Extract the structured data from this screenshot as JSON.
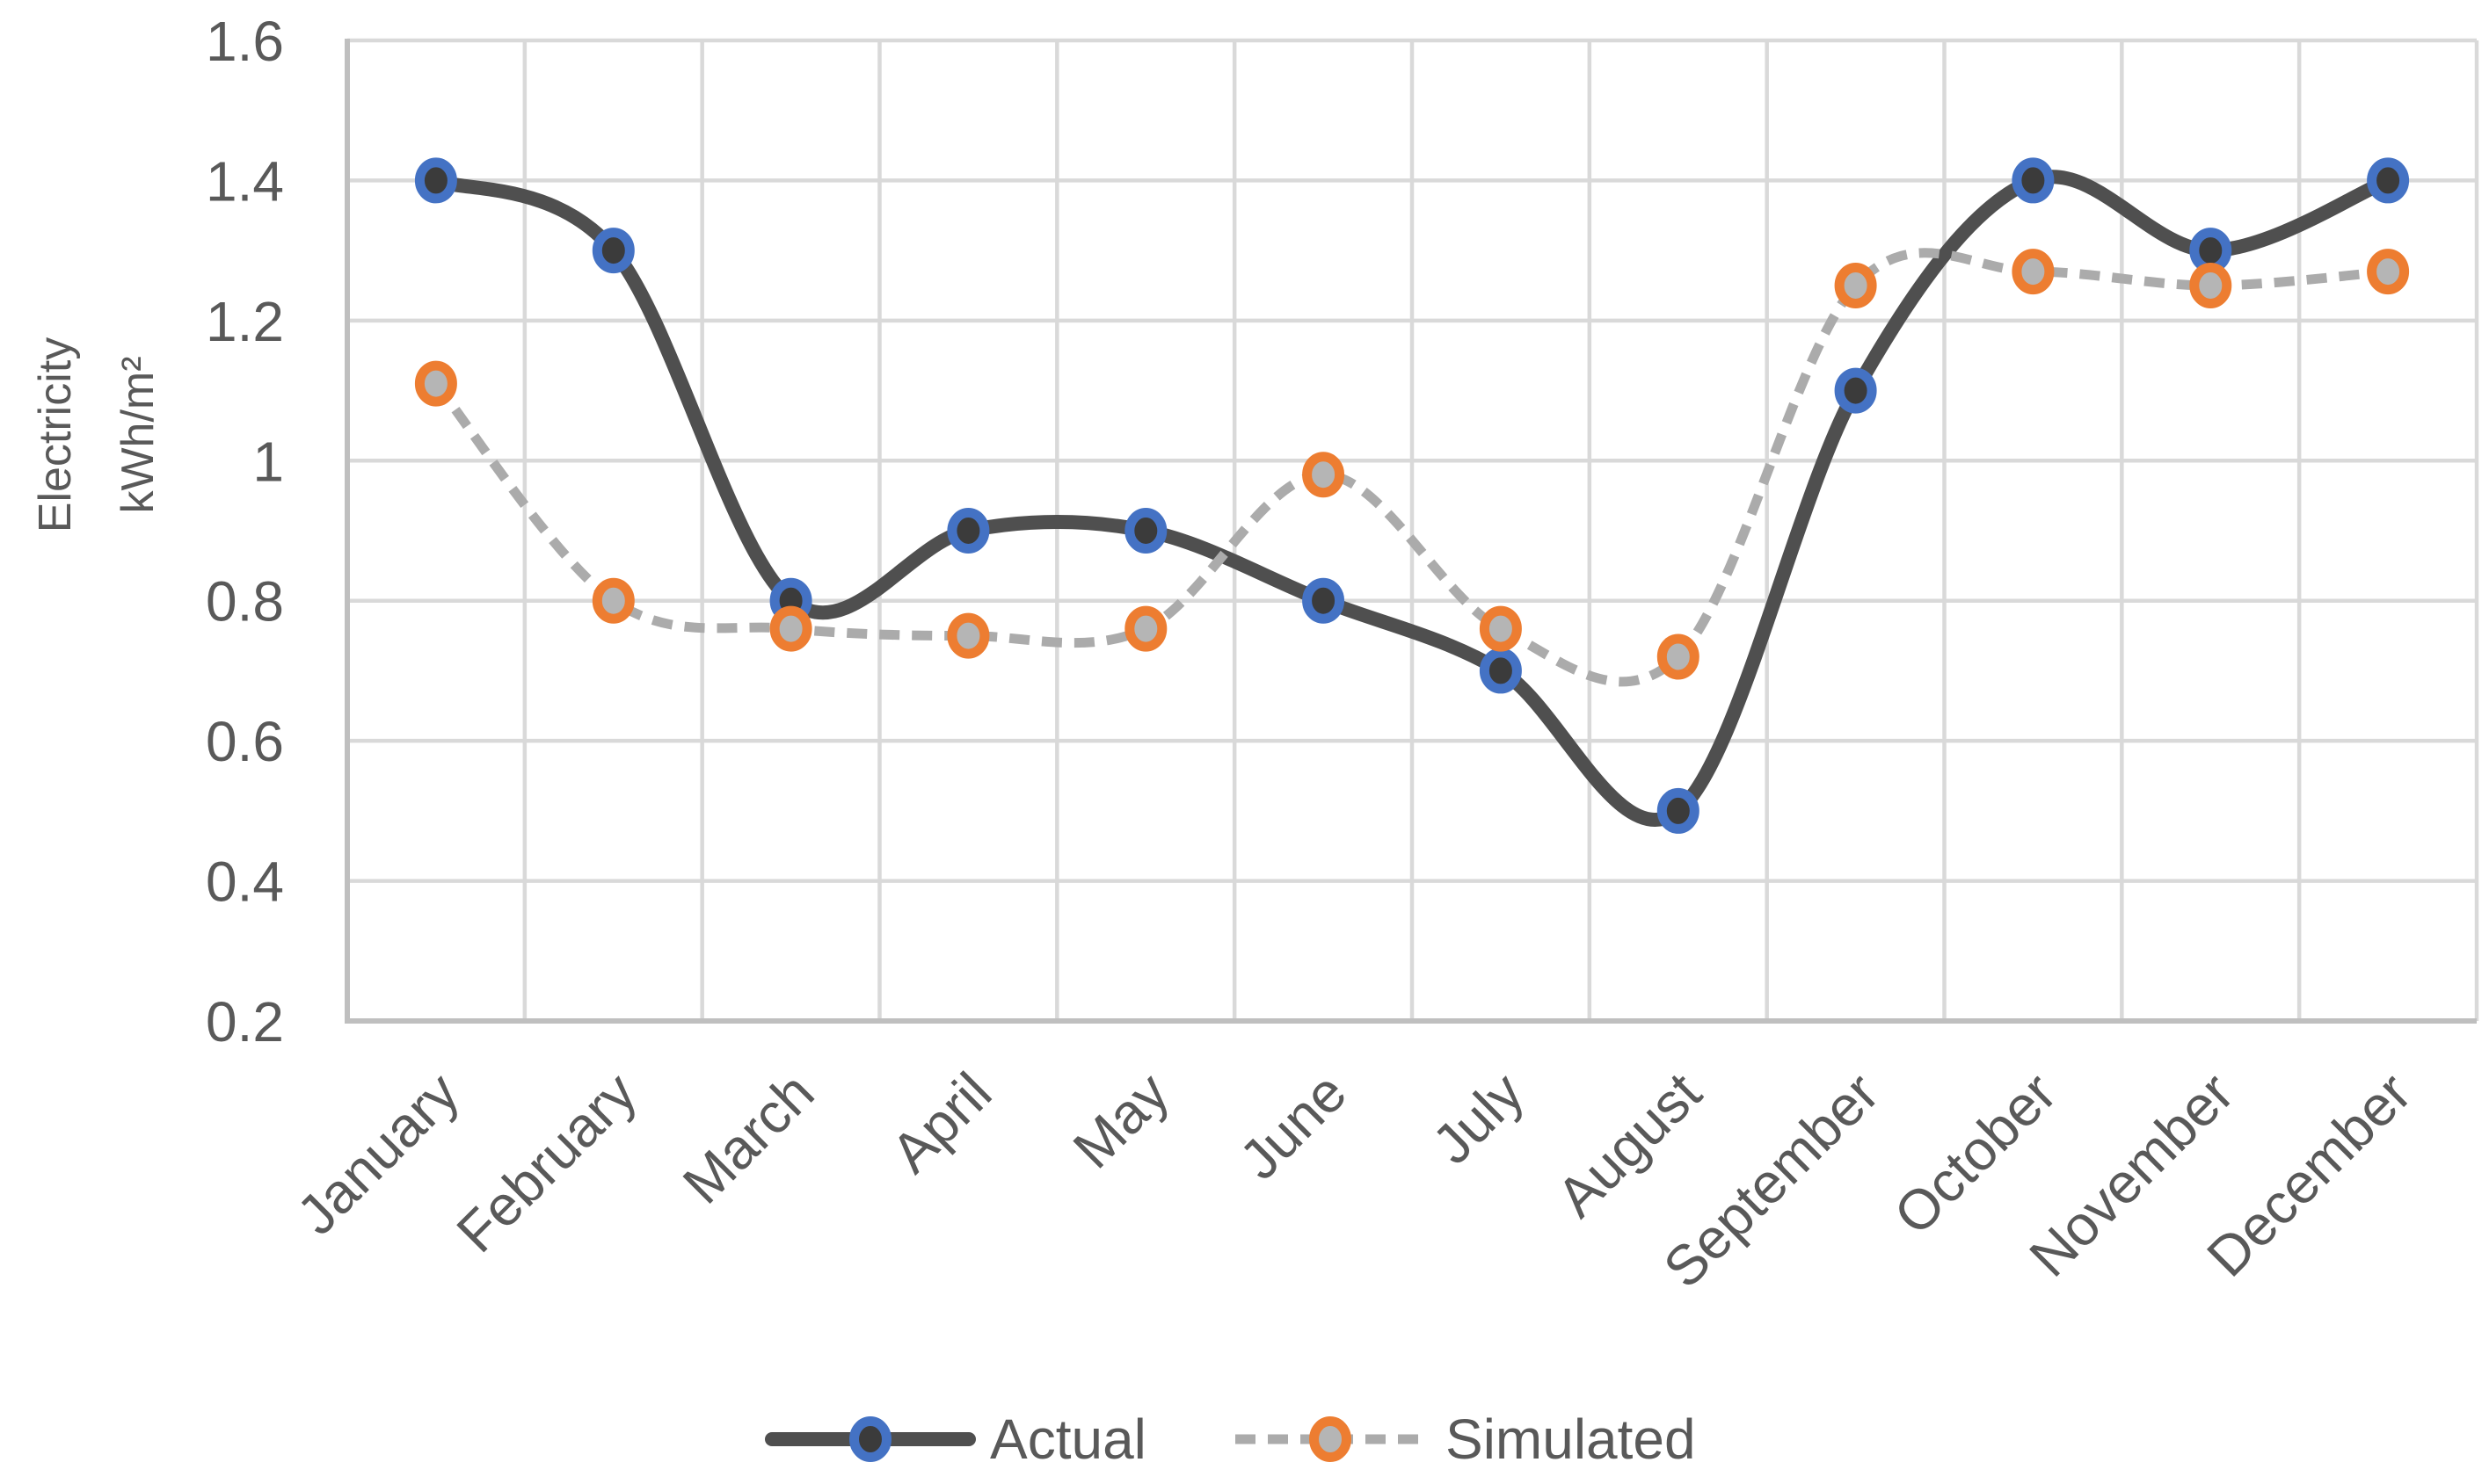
{
  "chart_data": {
    "type": "line",
    "title": "",
    "categories": [
      "January",
      "February",
      "March",
      "April",
      "May",
      "June",
      "July",
      "August",
      "September",
      "October",
      "November",
      "December"
    ],
    "series": [
      {
        "name": "Actual",
        "values": [
          1.4,
          1.3,
          0.8,
          0.9,
          0.9,
          0.8,
          0.7,
          0.5,
          1.1,
          1.4,
          1.3,
          1.4
        ],
        "line_style": "solid",
        "line_color": "#4f4f4f",
        "marker_fill": "#3b3b3b",
        "marker_outline": "#4472c4"
      },
      {
        "name": "Simulated",
        "values": [
          1.11,
          0.8,
          0.76,
          0.75,
          0.76,
          0.98,
          0.76,
          0.72,
          1.25,
          1.27,
          1.25,
          1.27
        ],
        "line_style": "dashed",
        "line_color": "#ababab",
        "marker_fill": "#b5b5b5",
        "marker_outline": "#ed7d31"
      }
    ],
    "xlabel": "",
    "ylabel": "Electricity kWh/m²",
    "ylabel_lines": [
      "Electricity",
      "kWh/m²"
    ],
    "ylim": [
      0.2,
      1.6
    ],
    "y_tick_step": 0.2,
    "y_ticks": [
      "1.6",
      "1.4",
      "1.2",
      "1",
      "0.8",
      "0.6",
      "0.4",
      "0.2"
    ],
    "grid": true,
    "smooth_lines": true,
    "legend_position": "bottom",
    "colors": {
      "gridline": "#d9d9d9",
      "axis_line": "#bfbfbf",
      "text": "#595959",
      "background": "#ffffff"
    }
  }
}
